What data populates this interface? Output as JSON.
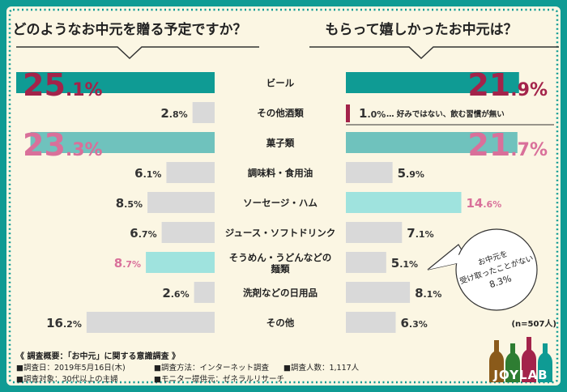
{
  "left_title": "どのようなお中元を贈る予定ですか？",
  "right_title": "もらって嬉しかったお中元は？",
  "chart_data": {
    "type": "bar",
    "categories": [
      "ビール",
      "その他酒類",
      "菓子類",
      "調味料・食用油",
      "ソーセージ・ハム",
      "ジュース・ソフトドリンク",
      "そうめん・うどんなどの麺類",
      "洗剤などの日用品",
      "その他"
    ],
    "category_lines": [
      [
        "ビール"
      ],
      [
        "その他酒類"
      ],
      [
        "菓子類"
      ],
      [
        "調味料・食用油"
      ],
      [
        "ソーセージ・ハム"
      ],
      [
        "ジュース・ソフトドリンク"
      ],
      [
        "そうめん・うどんなどの",
        "麺類"
      ],
      [
        "洗剤などの日用品"
      ],
      [
        "その他"
      ]
    ],
    "series": [
      {
        "values": [
          25.1,
          2.8,
          23.3,
          6.1,
          8.5,
          6.7,
          8.7,
          2.6,
          16.2
        ]
      },
      {
        "values": [
          21.9,
          1.0,
          21.7,
          5.9,
          14.6,
          7.1,
          5.1,
          8.1,
          6.3
        ]
      }
    ],
    "left_labels": [
      {
        "int": "25",
        "dec": ".1%"
      },
      {
        "int": "2",
        "dec": ".8%"
      },
      {
        "int": "23",
        "dec": ".3%"
      },
      {
        "int": "6",
        "dec": ".1%"
      },
      {
        "int": "8",
        "dec": ".5%"
      },
      {
        "int": "6",
        "dec": ".7%"
      },
      {
        "int": "8",
        "dec": ".7%"
      },
      {
        "int": "2",
        "dec": ".6%"
      },
      {
        "int": "16",
        "dec": ".2%"
      }
    ],
    "right_labels": [
      {
        "int": "21",
        "dec": ".9%"
      },
      {
        "int": "1",
        "dec": ".0%"
      },
      {
        "int": "21",
        "dec": ".7%"
      },
      {
        "int": "5",
        "dec": ".9%"
      },
      {
        "int": "14",
        "dec": ".6%"
      },
      {
        "int": "7",
        "dec": ".1%"
      },
      {
        "int": "5",
        "dec": ".1%"
      },
      {
        "int": "8",
        "dec": ".1%"
      },
      {
        "int": "6",
        "dec": ".3%"
      }
    ],
    "right_note_row1": "… 好みではない、飲む習慣が無い"
  },
  "colors": {
    "teal": "#0f9b94",
    "light_teal": "#6fc2bd",
    "aqua": "#9fe3de",
    "gray": "#d9d9d9",
    "maroon": "#a3234a",
    "pink": "#d9709a",
    "dark": "#333333"
  },
  "bubble": {
    "lines": [
      "お中元を",
      "受け取ったことがない",
      "8.3%"
    ]
  },
  "sample_size": "(n=507人)",
  "footer": {
    "line1": "《 調査概要：「お中元」に関する意識調査 》",
    "line2a": "■調査日：2019年5月16日(木)",
    "line2b": "■調査方法：インターネット調査",
    "line2c": "■調査人数：1,117人",
    "line3a": "■調査対象：30代以上の主婦",
    "line3b": "■モニター提供元：ゼネラルリサーチ"
  },
  "logo": "JOYLAB"
}
